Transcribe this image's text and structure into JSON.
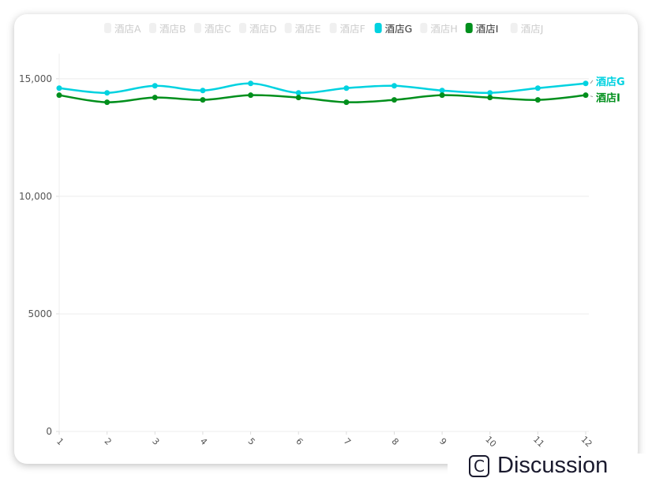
{
  "chart_data": {
    "type": "line",
    "categories": [
      "1",
      "2",
      "3",
      "4",
      "5",
      "6",
      "7",
      "8",
      "9",
      "10",
      "11",
      "12"
    ],
    "ylim": [
      0,
      16000
    ],
    "yticks": [
      0,
      5000,
      10000,
      15000
    ],
    "ytick_labels": [
      "0",
      "5000",
      "10,000",
      "15,000"
    ],
    "grid": true,
    "legend_placement": "top",
    "legend": [
      {
        "name": "酒店A",
        "active": false
      },
      {
        "name": "酒店B",
        "active": false
      },
      {
        "name": "酒店C",
        "active": false
      },
      {
        "name": "酒店D",
        "active": false
      },
      {
        "name": "酒店E",
        "active": false
      },
      {
        "name": "酒店F",
        "active": false
      },
      {
        "name": "酒店G",
        "active": true,
        "color": "#00d2e0"
      },
      {
        "name": "酒店H",
        "active": false
      },
      {
        "name": "酒店I",
        "active": true,
        "color": "#008f1c"
      },
      {
        "name": "酒店J",
        "active": false
      }
    ],
    "series": [
      {
        "name": "酒店G",
        "color": "#00d2e0",
        "values": [
          14600,
          14400,
          14700,
          14500,
          14800,
          14400,
          14600,
          14700,
          14500,
          14400,
          14600,
          14800
        ]
      },
      {
        "name": "酒店I",
        "color": "#008f1c",
        "values": [
          14300,
          14000,
          14200,
          14100,
          14300,
          14200,
          14000,
          14100,
          14300,
          14200,
          14100,
          14300
        ]
      }
    ]
  },
  "overlay": {
    "discussion_label": "Discussion",
    "discussion_icon": "C"
  }
}
